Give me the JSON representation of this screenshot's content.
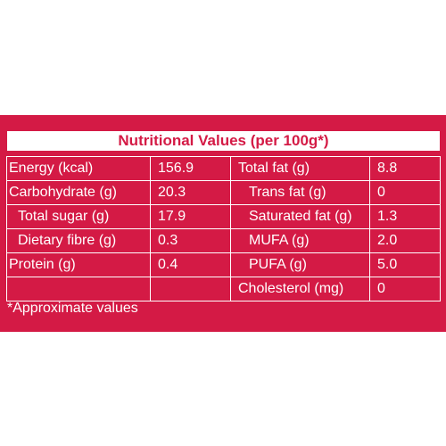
{
  "title": "Nutritional Values (per 100g*)",
  "rows": [
    {
      "left_label": "Energy (kcal)",
      "left_value": "156.9",
      "right_label": "Total fat (g)",
      "right_value": "8.8"
    },
    {
      "left_label": "Carbohydrate (g)",
      "left_value": "20.3",
      "right_label": "Trans fat (g)",
      "right_value": "0"
    },
    {
      "left_label": "Total sugar (g)",
      "left_value": "17.9",
      "right_label": "Saturated fat (g)",
      "right_value": "1.3"
    },
    {
      "left_label": "Dietary fibre (g)",
      "left_value": "0.3",
      "right_label": "MUFA (g)",
      "right_value": "2.0"
    },
    {
      "left_label": "Protein (g)",
      "left_value": "0.4",
      "right_label": "PUFA (g)",
      "right_value": "5.0"
    },
    {
      "left_label": "",
      "left_value": "",
      "right_label": "Cholesterol (mg)",
      "right_value": "0"
    }
  ],
  "footnote": "*Approximate values",
  "colors": {
    "background": "#d41a45",
    "text": "#ffffff"
  }
}
